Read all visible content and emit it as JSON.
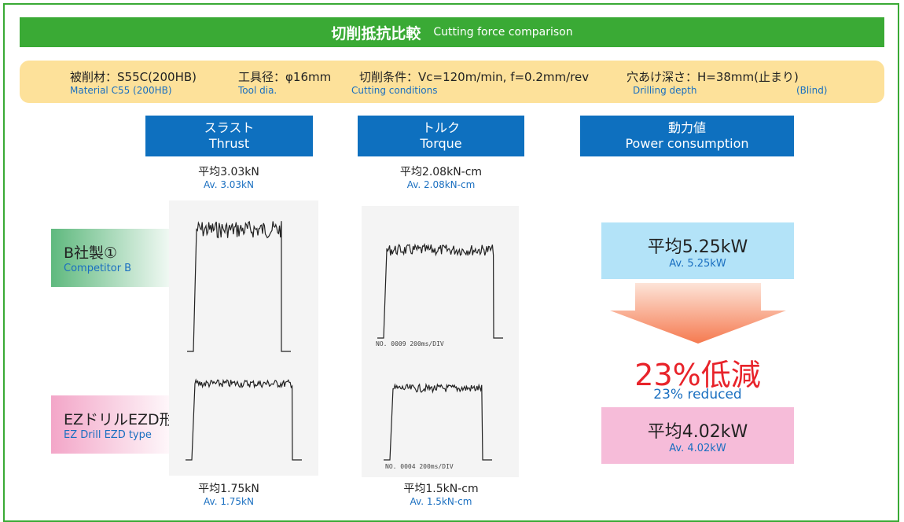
{
  "header": {
    "title_ja": "切削抵抗比較",
    "title_en": "Cutting force comparison"
  },
  "conditions": [
    {
      "ja": "被削材：S55C(200HB)",
      "en": "Material  C55 (200HB)"
    },
    {
      "ja": "工具径：φ16mm",
      "en": "Tool dia."
    },
    {
      "ja": "切削条件：Vc=120m/min, f=0.2mm/rev",
      "en": "Cutting conditions"
    },
    {
      "ja": "穴あけ深さ：H=38mm(止まり)",
      "en": "Drilling depth",
      "en2": "(Blind)"
    }
  ],
  "columns": [
    {
      "ja": "スラスト",
      "en": "Thrust"
    },
    {
      "ja": "トルク",
      "en": "Torque"
    },
    {
      "ja": "動力値",
      "en": "Power consumption"
    }
  ],
  "rows": [
    {
      "label_ja": "B社製①",
      "label_en": "Competitor B",
      "thrust_ja": "平均3.03kN",
      "thrust_en": "Av. 3.03kN",
      "torque_ja": "平均2.08kN-cm",
      "torque_en": "Av. 2.08kN-cm",
      "power_ja": "平均5.25kW",
      "power_en": "Av. 5.25kW",
      "graph_caption": "NO. 0009 200ms/DIV"
    },
    {
      "label_ja": "EZドリルEZD形",
      "label_en": "EZ Drill EZD type",
      "thrust_ja": "平均1.75kN",
      "thrust_en": "Av. 1.75kN",
      "torque_ja": "平均1.5kN-cm",
      "torque_en": "Av. 1.5kN-cm",
      "power_ja": "平均4.02kW",
      "power_en": "Av. 4.02kW",
      "graph_caption": "NO. 0004 200ms/DIV"
    }
  ],
  "reduction": {
    "ja": "23%低減",
    "en": "23% reduced"
  }
}
